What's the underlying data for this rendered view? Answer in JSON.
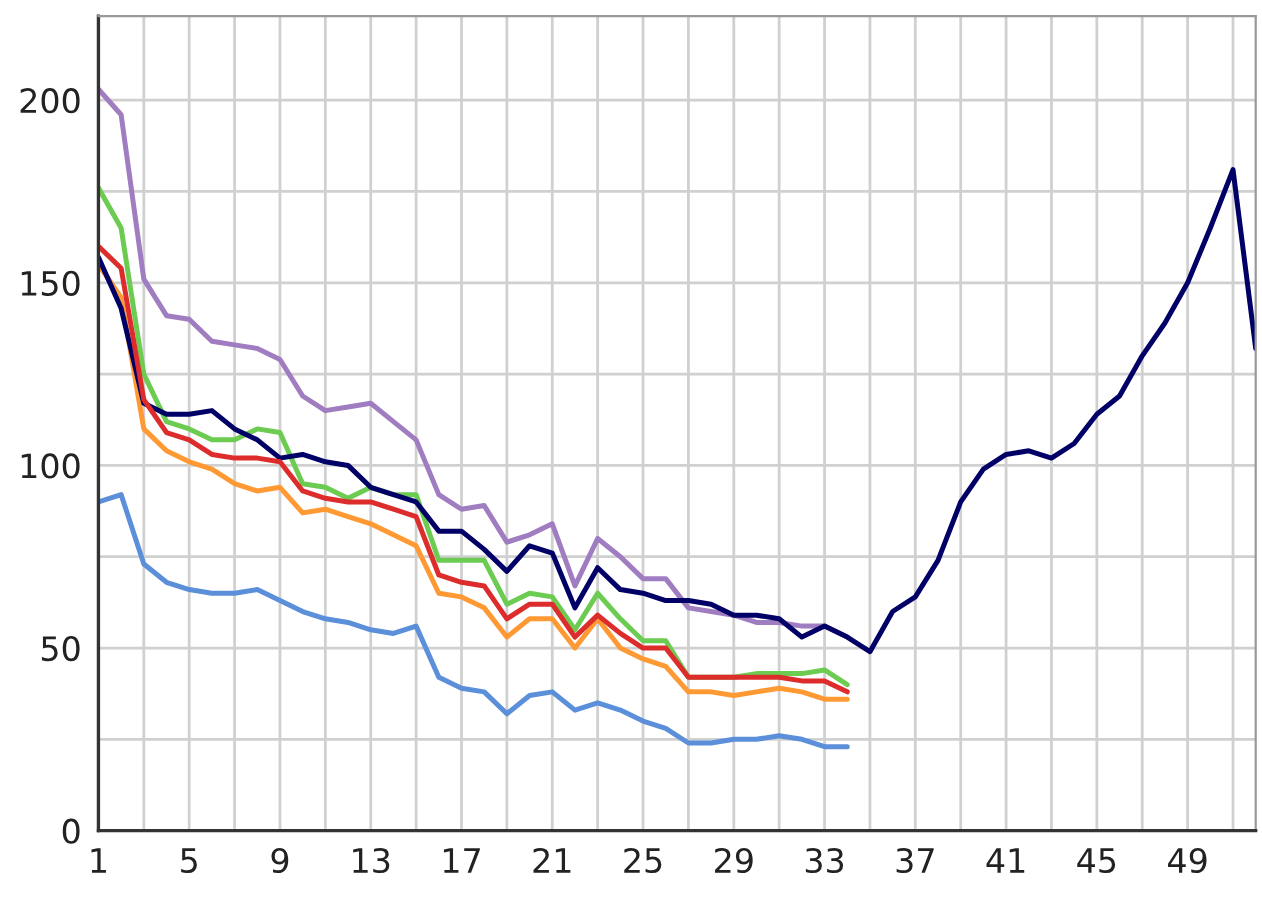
{
  "chart_data": {
    "type": "line",
    "xlim": [
      1,
      52
    ],
    "ylim": [
      0,
      223
    ],
    "grid": true,
    "marker": "none",
    "line_style": "solid",
    "xticks": [
      1,
      {
        "value": 3,
        "label": null
      },
      5,
      {
        "value": 7,
        "label": null
      },
      9,
      {
        "value": 11,
        "label": null
      },
      13,
      {
        "value": 15,
        "label": null
      },
      17,
      {
        "value": 19,
        "label": null
      },
      21,
      {
        "value": 23,
        "label": null
      },
      25,
      {
        "value": 27,
        "label": null
      },
      29,
      {
        "value": 31,
        "label": null
      },
      33,
      {
        "value": 35,
        "label": null
      },
      37,
      {
        "value": 39,
        "label": null
      },
      41,
      {
        "value": 43,
        "label": null
      },
      45,
      {
        "value": 47,
        "label": null
      },
      49,
      {
        "value": 51,
        "label": null
      }
    ],
    "yticks": [
      0,
      {
        "value": 25,
        "label": null
      },
      50,
      {
        "value": 75,
        "label": null
      },
      100,
      {
        "value": 125,
        "label": null
      },
      150,
      {
        "value": 175,
        "label": null
      },
      200
    ],
    "x": [
      1,
      2,
      3,
      4,
      5,
      6,
      7,
      8,
      9,
      10,
      11,
      12,
      13,
      14,
      15,
      16,
      17,
      18,
      19,
      20,
      21,
      22,
      23,
      24,
      25,
      26,
      27,
      28,
      29,
      30,
      31,
      32,
      33,
      34
    ],
    "series": [
      {
        "color": "#5b8fd9",
        "values": [
          90,
          92,
          73,
          68,
          66,
          65,
          65,
          66,
          63,
          60,
          58,
          57,
          55,
          54,
          56,
          42,
          39,
          38,
          32,
          37,
          38,
          33,
          35,
          33,
          30,
          28,
          24,
          24,
          25,
          25,
          26,
          25,
          23,
          23
        ]
      },
      {
        "color": "#ff9933",
        "values": [
          155,
          146,
          110,
          104,
          101,
          99,
          95,
          93,
          94,
          87,
          88,
          86,
          84,
          81,
          78,
          65,
          64,
          61,
          53,
          58,
          58,
          50,
          58,
          50,
          47,
          45,
          38,
          38,
          37,
          38,
          39,
          38,
          36,
          36
        ]
      },
      {
        "color": "#6ccc52",
        "values": [
          176,
          165,
          125,
          112,
          110,
          107,
          107,
          110,
          109,
          95,
          94,
          91,
          94,
          92,
          92,
          74,
          74,
          74,
          62,
          65,
          64,
          55,
          65,
          58,
          52,
          52,
          42,
          42,
          42,
          43,
          43,
          43,
          44,
          40
        ]
      },
      {
        "color": "#a07cc0",
        "values": [
          203,
          196,
          151,
          141,
          140,
          134,
          133,
          132,
          129,
          119,
          115,
          116,
          117,
          112,
          107,
          92,
          88,
          89,
          79,
          81,
          84,
          67,
          80,
          75,
          69,
          69,
          61,
          60,
          59,
          57,
          57,
          56,
          56,
          53
        ]
      },
      {
        "color": "#000066",
        "x": [
          1,
          2,
          3,
          4,
          5,
          6,
          7,
          8,
          9,
          10,
          11,
          12,
          13,
          14,
          15,
          16,
          17,
          18,
          19,
          20,
          21,
          22,
          23,
          24,
          25,
          26,
          27,
          28,
          29,
          30,
          31,
          32,
          33,
          34,
          35,
          36,
          37,
          38,
          39,
          40,
          41,
          42,
          43,
          44,
          45,
          46,
          47,
          48,
          49,
          50,
          51,
          52
        ],
        "values": [
          157,
          143,
          117,
          114,
          114,
          115,
          110,
          107,
          102,
          103,
          101,
          100,
          94,
          92,
          90,
          82,
          82,
          77,
          71,
          78,
          76,
          61,
          72,
          66,
          65,
          63,
          63,
          62,
          59,
          59,
          58,
          53,
          56,
          53,
          49,
          60,
          64,
          74,
          90,
          99,
          103,
          104,
          102,
          106,
          114,
          119,
          130,
          139,
          150,
          165,
          181,
          132
        ]
      },
      {
        "color": "#dd2c2c",
        "values": [
          160,
          154,
          118,
          109,
          107,
          103,
          102,
          102,
          101,
          93,
          91,
          90,
          90,
          88,
          86,
          70,
          68,
          67,
          58,
          62,
          62,
          53,
          59,
          54,
          50,
          50,
          42,
          42,
          42,
          42,
          42,
          41,
          41,
          38
        ]
      }
    ]
  }
}
